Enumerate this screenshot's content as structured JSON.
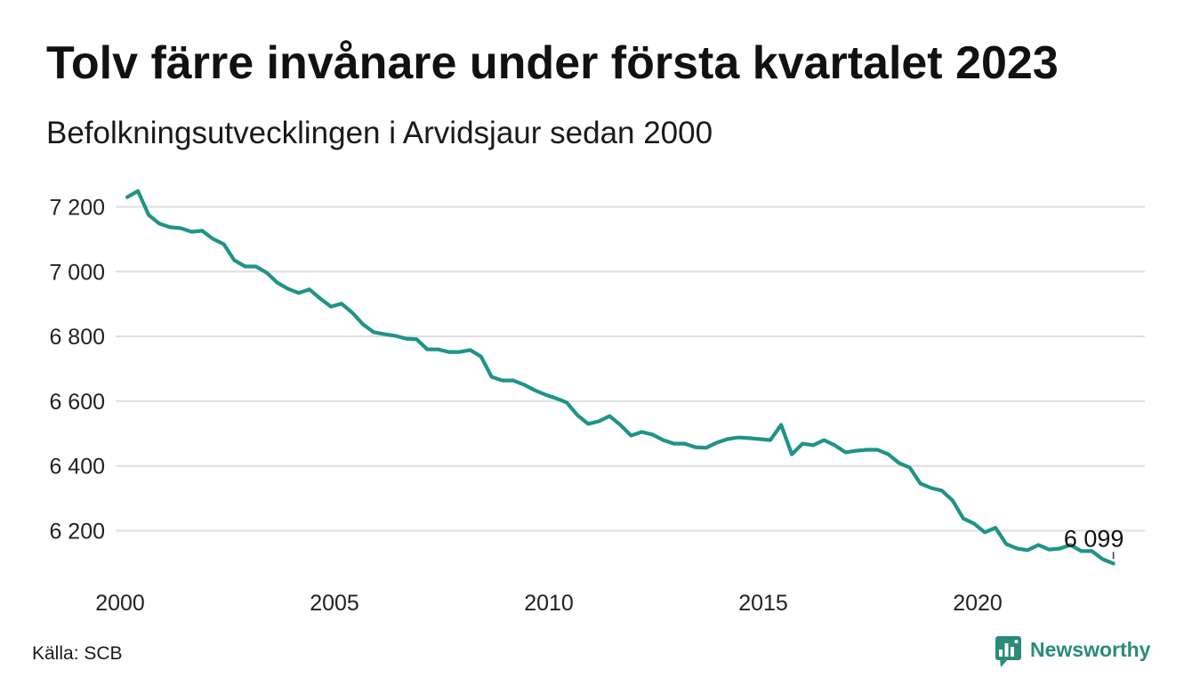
{
  "source": "Källa: SCB",
  "logo_text": "Newsworthy",
  "colors": {
    "line": "#1f9486",
    "grid": "#dedede",
    "logo": "#2a8b79",
    "text": "#111111"
  },
  "chart_data": {
    "type": "line",
    "title": "Tolv färre invånare under första kvartalet 2023",
    "subtitle": "Befolkningsutvecklingen i Arvidsjaur sedan 2000",
    "xlabel": "",
    "ylabel": "",
    "grid": "horizontal",
    "x_ticks": [
      {
        "value": 2000,
        "label": "2000"
      },
      {
        "value": 2005,
        "label": "2005"
      },
      {
        "value": 2010,
        "label": "2010"
      },
      {
        "value": 2015,
        "label": "2015"
      },
      {
        "value": 2020,
        "label": "2020"
      }
    ],
    "y_ticks": [
      {
        "value": 7200,
        "label": "7 200"
      },
      {
        "value": 7000,
        "label": "7 000"
      },
      {
        "value": 6800,
        "label": "6 800"
      },
      {
        "value": 6600,
        "label": "6 600"
      },
      {
        "value": 6400,
        "label": "6 400"
      },
      {
        "value": 6200,
        "label": "6 200"
      }
    ],
    "x": [
      "2000-03",
      "2000-06",
      "2000-09",
      "2000-12",
      "2001-03",
      "2001-06",
      "2001-09",
      "2001-12",
      "2002-03",
      "2002-06",
      "2002-09",
      "2002-12",
      "2003-03",
      "2003-06",
      "2003-09",
      "2003-12",
      "2004-03",
      "2004-06",
      "2004-09",
      "2004-12",
      "2005-03",
      "2005-06",
      "2005-09",
      "2005-12",
      "2006-03",
      "2006-06",
      "2006-09",
      "2006-12",
      "2007-03",
      "2007-06",
      "2007-09",
      "2007-12",
      "2008-03",
      "2008-06",
      "2008-09",
      "2008-12",
      "2009-03",
      "2009-06",
      "2009-09",
      "2009-12",
      "2010-03",
      "2010-06",
      "2010-09",
      "2010-12",
      "2011-03",
      "2011-06",
      "2011-09",
      "2011-12",
      "2012-03",
      "2012-06",
      "2012-09",
      "2012-12",
      "2013-03",
      "2013-06",
      "2013-09",
      "2013-12",
      "2014-03",
      "2014-06",
      "2014-09",
      "2014-12",
      "2015-03",
      "2015-06",
      "2015-09",
      "2015-12",
      "2016-03",
      "2016-06",
      "2016-09",
      "2016-12",
      "2017-03",
      "2017-06",
      "2017-09",
      "2017-12",
      "2018-03",
      "2018-06",
      "2018-09",
      "2018-12",
      "2019-03",
      "2019-06",
      "2019-09",
      "2019-12",
      "2020-03",
      "2020-06",
      "2020-09",
      "2020-12",
      "2021-03",
      "2021-06",
      "2021-09",
      "2021-12",
      "2022-03",
      "2022-06",
      "2022-09",
      "2022-12",
      "2023-03"
    ],
    "y": [
      7230,
      7249,
      7175,
      7148,
      7137,
      7134,
      7123,
      7126,
      7101,
      7085,
      7035,
      7016,
      7016,
      6997,
      6966,
      6947,
      6934,
      6945,
      6917,
      6892,
      6901,
      6873,
      6837,
      6813,
      6807,
      6802,
      6793,
      6791,
      6760,
      6760,
      6752,
      6752,
      6758,
      6738,
      6675,
      6664,
      6664,
      6651,
      6634,
      6620,
      6609,
      6596,
      6557,
      6530,
      6538,
      6554,
      6527,
      6494,
      6505,
      6497,
      6480,
      6469,
      6469,
      6458,
      6456,
      6472,
      6483,
      6488,
      6486,
      6483,
      6480,
      6527,
      6436,
      6469,
      6464,
      6480,
      6464,
      6442,
      6447,
      6450,
      6450,
      6436,
      6409,
      6395,
      6346,
      6332,
      6324,
      6293,
      6238,
      6222,
      6195,
      6209,
      6159,
      6145,
      6140,
      6156,
      6142,
      6145,
      6156,
      6137,
      6137,
      6112,
      6099
    ],
    "annotation": {
      "x": "2023-03",
      "y": 6099,
      "label": "6 099"
    }
  }
}
